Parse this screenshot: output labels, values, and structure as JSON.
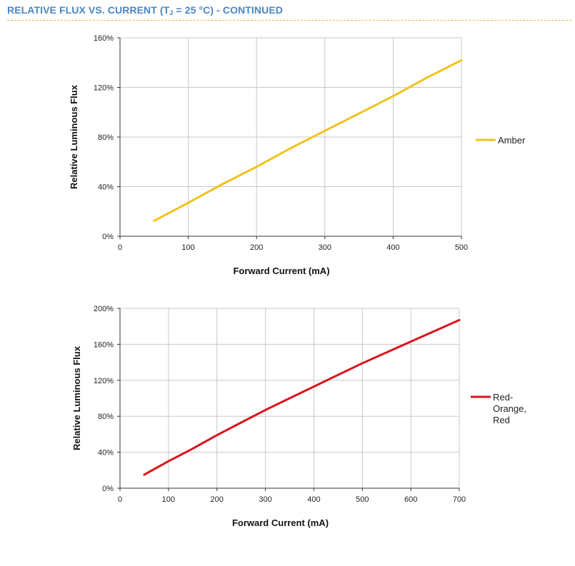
{
  "header": {
    "title_prefix": "RELATIVE FLUX VS. CURRENT (T",
    "title_sub": "J",
    "title_suffix": " = 25 °C) - CONTINUED"
  },
  "chart_data": [
    {
      "type": "line",
      "title": "",
      "xlabel": "Forward Current (mA)",
      "ylabel": "Relative Luminous Flux",
      "xlim": [
        0,
        500
      ],
      "ylim": [
        0,
        160
      ],
      "x_ticks": [
        0,
        100,
        200,
        300,
        400,
        500
      ],
      "x_tick_labels": [
        "0",
        "100",
        "200",
        "300",
        "400",
        "500"
      ],
      "y_ticks": [
        0,
        40,
        80,
        120,
        160
      ],
      "y_tick_labels": [
        "0%",
        "40%",
        "80%",
        "120%",
        "160%"
      ],
      "grid": true,
      "legend_position": "right",
      "series": [
        {
          "name": "Amber",
          "color": "#f2c31b",
          "x": [
            50,
            100,
            150,
            200,
            250,
            300,
            350,
            400,
            450,
            500
          ],
          "y": [
            12.5,
            27,
            42,
            56,
            71,
            85,
            99,
            113,
            128,
            142
          ]
        }
      ]
    },
    {
      "type": "line",
      "title": "",
      "xlabel": "Forward Current (mA)",
      "ylabel": "Relative Luminous Flux",
      "xlim": [
        0,
        700
      ],
      "ylim": [
        0,
        200
      ],
      "x_ticks": [
        0,
        100,
        200,
        300,
        400,
        500,
        600,
        700
      ],
      "x_tick_labels": [
        "0",
        "100",
        "200",
        "300",
        "400",
        "500",
        "600",
        "700"
      ],
      "y_ticks": [
        0,
        40,
        80,
        120,
        160,
        200
      ],
      "y_tick_labels": [
        "0%",
        "40%",
        "80%",
        "120%",
        "160%",
        "200%"
      ],
      "grid": true,
      "legend_position": "right",
      "series": [
        {
          "name": "Red-Orange, Red",
          "name_lines": [
            "Red-",
            "Orange,",
            "Red"
          ],
          "color": "#d9141c",
          "x": [
            50,
            100,
            150,
            200,
            250,
            300,
            350,
            400,
            450,
            500,
            550,
            600,
            650,
            700
          ],
          "y": [
            15,
            30,
            44,
            59,
            73,
            87,
            100,
            113,
            126,
            139,
            151,
            163,
            175,
            187
          ]
        }
      ]
    }
  ]
}
